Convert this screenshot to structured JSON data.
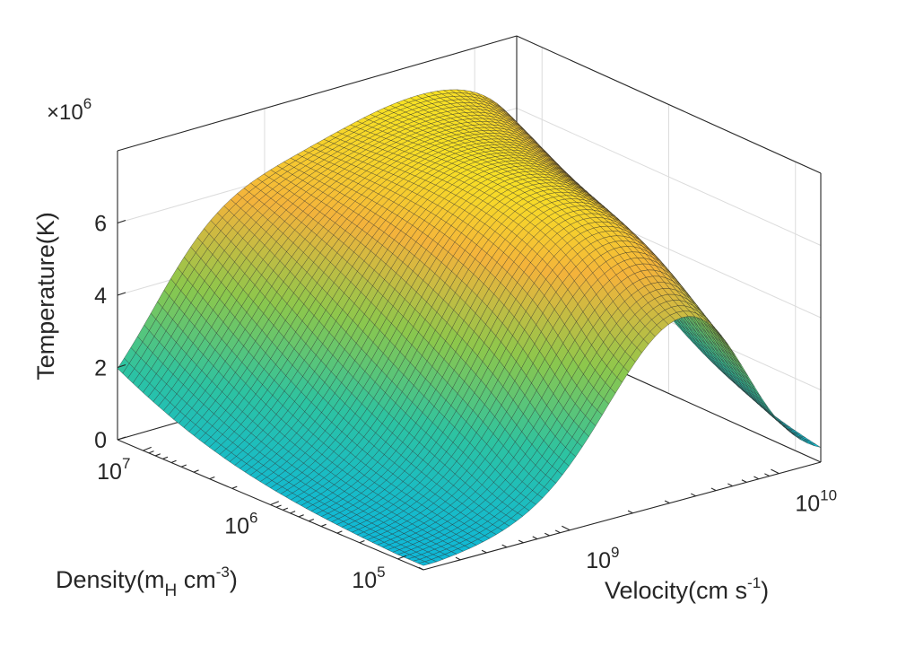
{
  "chart_data": {
    "type": "surface",
    "title": "",
    "zlabel": "Temperature(K)",
    "zlabel_full": "Temperature(K)",
    "z_multiplier": "×10^6",
    "z_multiplier_base": "×10",
    "z_multiplier_exp": "6",
    "density_label_main": "Density(m",
    "density_label_sub": "H",
    "density_label_mid": " cm",
    "density_label_sup": "-3",
    "density_label_end": ")",
    "velocity_label_main": "Velocity(cm s",
    "velocity_label_sup": "-1",
    "velocity_label_end": ")",
    "z_ticks": [
      0,
      2,
      4,
      6
    ],
    "z_tick_labels": [
      "0",
      "2",
      "4",
      "6"
    ],
    "zlim": [
      0,
      8
    ],
    "density_ticks": [
      {
        "base": "10",
        "exp": "7",
        "value": 7
      },
      {
        "base": "10",
        "exp": "6",
        "value": 6
      },
      {
        "base": "10",
        "exp": "5",
        "value": 5
      }
    ],
    "velocity_ticks": [
      {
        "base": "10",
        "exp": "9",
        "value": 9
      },
      {
        "base": "10",
        "exp": "10",
        "value": 10
      }
    ],
    "density_range_log10": [
      4.8,
      7.2
    ],
    "velocity_range_log10": [
      8.3,
      10.2
    ],
    "z_scale": 1000000,
    "grid": true,
    "colormap": "parula",
    "colormap_stops": [
      "#0fb8d7",
      "#2dc3a1",
      "#8cc74c",
      "#f4b33b",
      "#f9f61a"
    ],
    "grid_resolution": 60,
    "surface_peak_value": 7.7,
    "surface_min_value": 0.1,
    "corner_values": {
      "density_high_velocity_low": 1.6,
      "density_low_velocity_low": 0.2,
      "density_low_velocity_high": 0.2,
      "density_high_velocity_high": 7.4
    }
  }
}
